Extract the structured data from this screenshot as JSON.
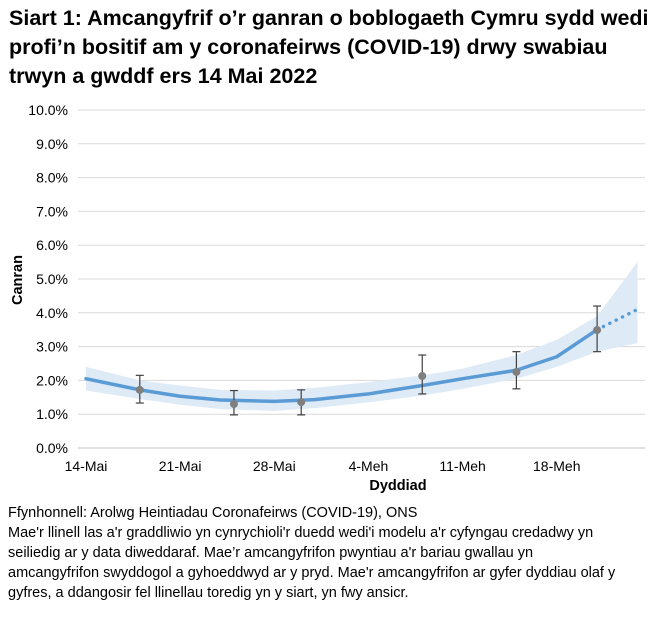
{
  "title": "Siart 1: Amcangyfrif o’r ganran o boblogaeth Cymru sydd wedi profi’n bositif am y coronafeirws (COVID-19) drwy swabiau trwyn a gwddf ers 14 Mai 2022",
  "footer": {
    "source": "Ffynhonnell: Arolwg Heintiadau Coronafeirws (COVID-19), ONS",
    "note_lines": [
      "Mae'r llinell las a'r graddliwio yn cynrychioli'r duedd wedi'i modelu a'r cyfyngau credadwy yn",
      "seiliedig ar y data diweddaraf. Mae’r amcangyfrifon pwyntiau a'r bariau gwallau yn",
      "amcangyfrifon swyddogol a gyhoeddwyd ar y pryd. Mae'r amcangyfrifon ar gyfer dyddiau olaf y",
      "gyfres, a ddangosir fel llinellau toredig yn y siart, yn fwy ansicr."
    ]
  },
  "chart_data": {
    "type": "line",
    "xlabel": "Dyddiad",
    "ylabel": "Canran",
    "ylim": [
      0,
      10
    ],
    "yticks": [
      "0.0%",
      "1.0%",
      "2.0%",
      "3.0%",
      "4.0%",
      "5.0%",
      "6.0%",
      "7.0%",
      "8.0%",
      "9.0%",
      "10.0%"
    ],
    "xticks": [
      {
        "date": "2022-05-14",
        "label": "14-Mai"
      },
      {
        "date": "2022-05-21",
        "label": "21-Mai"
      },
      {
        "date": "2022-05-28",
        "label": "28-Mai"
      },
      {
        "date": "2022-06-04",
        "label": "4-Meh"
      },
      {
        "date": "2022-06-11",
        "label": "11-Meh"
      },
      {
        "date": "2022-06-18",
        "label": "18-Meh"
      }
    ],
    "xlim": [
      "2022-05-14",
      "2022-06-24"
    ],
    "grid": true,
    "colors": {
      "trend": "#5b9bd5",
      "band": "#deeaf6",
      "points": "#7f7f7f",
      "errorbars": "#404040",
      "grid": "#d9d9d9"
    },
    "trend": {
      "x": [
        "2022-05-14",
        "2022-05-18",
        "2022-05-21",
        "2022-05-24",
        "2022-05-28",
        "2022-05-31",
        "2022-06-04",
        "2022-06-08",
        "2022-06-11",
        "2022-06-15",
        "2022-06-18",
        "2022-06-21",
        "2022-06-24"
      ],
      "y": [
        2.05,
        1.72,
        1.53,
        1.42,
        1.38,
        1.43,
        1.6,
        1.85,
        2.05,
        2.3,
        2.7,
        3.5,
        4.1
      ],
      "lower": [
        1.7,
        1.45,
        1.28,
        1.15,
        1.1,
        1.18,
        1.35,
        1.55,
        1.75,
        2.05,
        2.4,
        2.85,
        3.1
      ],
      "upper": [
        2.4,
        2.0,
        1.85,
        1.72,
        1.7,
        1.78,
        1.95,
        2.15,
        2.35,
        2.75,
        3.2,
        3.9,
        5.5
      ],
      "dashed_from": "2022-06-21"
    },
    "points": [
      {
        "x": "2022-05-18",
        "y": 1.72,
        "lo": 1.33,
        "hi": 2.15
      },
      {
        "x": "2022-05-25",
        "y": 1.3,
        "lo": 0.98,
        "hi": 1.7
      },
      {
        "x": "2022-05-30",
        "y": 1.36,
        "lo": 0.98,
        "hi": 1.72
      },
      {
        "x": "2022-06-08",
        "y": 2.13,
        "lo": 1.6,
        "hi": 2.75
      },
      {
        "x": "2022-06-15",
        "y": 2.25,
        "lo": 1.75,
        "hi": 2.85
      },
      {
        "x": "2022-06-21",
        "y": 3.49,
        "lo": 2.85,
        "hi": 4.2
      }
    ]
  }
}
